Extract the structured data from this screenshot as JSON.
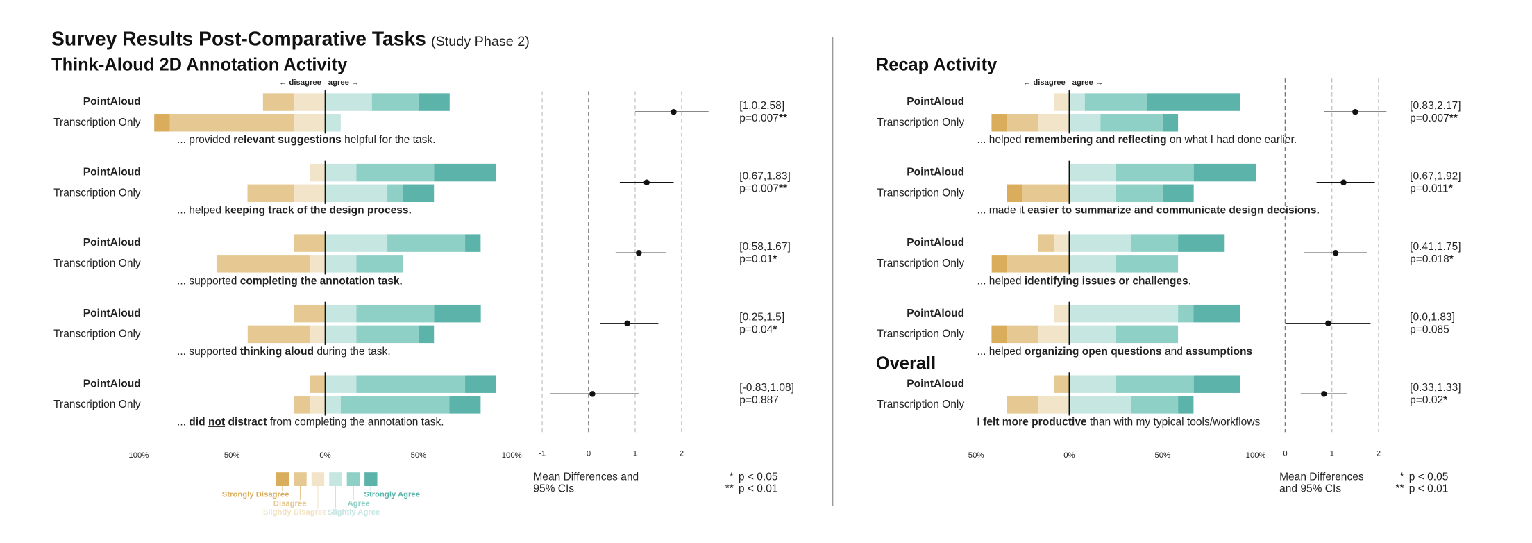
{
  "title": "Survey Results Post-Comparative Tasks",
  "subtitle": "(Study Phase 2)",
  "direction_labels": [
    "← disagree",
    "agree →"
  ],
  "legend": {
    "levels": [
      "Strongly Disagree",
      "Disagree",
      "Slightly Disagree",
      "Slightly Agree",
      "Agree",
      "Strongly Agree"
    ],
    "colors": [
      "#d9ad5b",
      "#e6c992",
      "#f2e4c8",
      "#c6e6e2",
      "#8fd0c6",
      "#5bb3a9"
    ]
  },
  "significance": [
    {
      "symbol": "*",
      "label": "p < 0.05"
    },
    {
      "symbol": "**",
      "label": "p < 0.01"
    }
  ],
  "chart_data": [
    {
      "type": "diverging_bar",
      "title": "Think-Aloud 2D Annotation Activity",
      "xlim": [
        -100,
        100
      ],
      "xticks": [
        {
          "value": -100,
          "label": "100%"
        },
        {
          "value": -50,
          "label": "50%"
        },
        {
          "value": 0,
          "label": "0%"
        },
        {
          "value": 50,
          "label": "50%"
        },
        {
          "value": 100,
          "label": "100%"
        }
      ],
      "ci_xlim": [
        -1,
        2
      ],
      "ci_xticks": [
        -1,
        0,
        1,
        2
      ],
      "ci_axis_label": [
        "Mean Differences and",
        "95% CIs"
      ],
      "groups": [
        {
          "question": [
            {
              "text": "... provided "
            },
            {
              "text": "relevant suggestions",
              "bold": true
            },
            {
              "text": " helpful for the task."
            }
          ],
          "series": [
            {
              "name": "PointAloud",
              "values": [
                0,
                16.7,
                16.7,
                25,
                25,
                16.7
              ]
            },
            {
              "name": "Transcription Only",
              "values": [
                8.3,
                66.7,
                16.7,
                8.3,
                0,
                0
              ]
            }
          ],
          "mean": 1.83,
          "ci": [
            1.0,
            2.58
          ],
          "ci_label": "[1.0,2.58]",
          "p_label": "p=0.007",
          "stars": "**"
        },
        {
          "question": [
            {
              "text": "... helped "
            },
            {
              "text": "keeping track of the design process.",
              "bold": true
            }
          ],
          "series": [
            {
              "name": "PointAloud",
              "values": [
                0,
                0,
                8.3,
                16.7,
                41.7,
                33.3
              ]
            },
            {
              "name": "Transcription Only",
              "values": [
                0,
                25,
                16.7,
                33.3,
                8.3,
                16.7
              ]
            }
          ],
          "mean": 1.25,
          "ci": [
            0.67,
            1.83
          ],
          "ci_label": "[0.67,1.83]",
          "p_label": "p=0.007",
          "stars": "**"
        },
        {
          "question": [
            {
              "text": "... supported "
            },
            {
              "text": "completing the annotation task.",
              "bold": true
            }
          ],
          "series": [
            {
              "name": "PointAloud",
              "values": [
                0,
                16.7,
                0,
                33.3,
                41.7,
                8.3
              ]
            },
            {
              "name": "Transcription Only",
              "values": [
                0,
                50,
                8.3,
                16.7,
                25,
                0
              ]
            }
          ],
          "mean": 1.08,
          "ci": [
            0.58,
            1.67
          ],
          "ci_label": "[0.58,1.67]",
          "p_label": "p=0.01",
          "stars": "*"
        },
        {
          "question": [
            {
              "text": "... supported "
            },
            {
              "text": "thinking aloud",
              "bold": true
            },
            {
              "text": " during the task."
            }
          ],
          "series": [
            {
              "name": "PointAloud",
              "values": [
                0,
                16.7,
                0,
                16.7,
                41.7,
                25
              ]
            },
            {
              "name": "Transcription Only",
              "values": [
                0,
                33.3,
                8.3,
                16.7,
                33.3,
                8.3
              ]
            }
          ],
          "mean": 0.83,
          "ci": [
            0.25,
            1.5
          ],
          "ci_label": "[0.25,1.5]",
          "p_label": "p=0.04",
          "stars": "*"
        },
        {
          "question": [
            {
              "text": "... "
            },
            {
              "text": "did ",
              "bold": true
            },
            {
              "text": "not",
              "bold": true,
              "underline": true
            },
            {
              "text": " distract",
              "bold": true
            },
            {
              "text": " from completing the annotation task."
            }
          ],
          "series": [
            {
              "name": "PointAloud",
              "values": [
                0,
                8.3,
                0,
                16.7,
                58.3,
                16.7
              ]
            },
            {
              "name": "Transcription Only",
              "values": [
                0,
                8.3,
                8.3,
                8.3,
                58.3,
                16.7
              ]
            }
          ],
          "mean": 0.08,
          "ci": [
            -0.83,
            1.08
          ],
          "ci_label": "[-0.83,1.08]",
          "p_label": "p=0.887"
        }
      ]
    },
    {
      "type": "diverging_bar",
      "title": "Recap Activity",
      "xlim": [
        -100,
        100
      ],
      "xticks": [
        {
          "value": -50,
          "label": "50%"
        },
        {
          "value": 0,
          "label": "0%"
        },
        {
          "value": 50,
          "label": "50%"
        },
        {
          "value": 100,
          "label": "100%"
        }
      ],
      "ci_xlim": [
        0,
        2
      ],
      "ci_xticks": [
        0,
        1,
        2
      ],
      "ci_axis_label": [
        "Mean Differences",
        "and 95% CIs"
      ],
      "groups": [
        {
          "question": [
            {
              "text": "... helped "
            },
            {
              "text": "remembering and reflecting",
              "bold": true
            },
            {
              "text": " on what I had done earlier."
            }
          ],
          "series": [
            {
              "name": "PointAloud",
              "values": [
                0,
                0,
                8.3,
                8.3,
                33.3,
                50
              ]
            },
            {
              "name": "Transcription Only",
              "values": [
                8.3,
                16.7,
                16.7,
                16.7,
                33.3,
                8.3
              ]
            }
          ],
          "mean": 1.5,
          "ci": [
            0.83,
            2.17
          ],
          "ci_label": "[0.83,2.17]",
          "p_label": "p=0.007",
          "stars": "**"
        },
        {
          "question": [
            {
              "text": "... made it "
            },
            {
              "text": "easier to summarize and communicate design decisions.",
              "bold": true
            }
          ],
          "series": [
            {
              "name": "PointAloud",
              "values": [
                0,
                0,
                0,
                25,
                41.7,
                33.3
              ]
            },
            {
              "name": "Transcription Only",
              "values": [
                8.3,
                25,
                0,
                25,
                25,
                16.7
              ]
            }
          ],
          "mean": 1.25,
          "ci": [
            0.67,
            1.92
          ],
          "ci_label": "[0.67,1.92]",
          "p_label": "p=0.011",
          "stars": "*"
        },
        {
          "question": [
            {
              "text": "... helped "
            },
            {
              "text": "identifying issues or challenges",
              "bold": true
            },
            {
              "text": "."
            }
          ],
          "series": [
            {
              "name": "PointAloud",
              "values": [
                0,
                8.3,
                8.3,
                33.3,
                25,
                25
              ]
            },
            {
              "name": "Transcription Only",
              "values": [
                8.3,
                33.3,
                0,
                25,
                33.3,
                0
              ]
            }
          ],
          "mean": 1.08,
          "ci": [
            0.41,
            1.75
          ],
          "ci_label": "[0.41,1.75]",
          "p_label": "p=0.018",
          "stars": "*"
        },
        {
          "question": [
            {
              "text": "... helped "
            },
            {
              "text": "organizing open questions",
              "bold": true
            },
            {
              "text": " and "
            },
            {
              "text": "assumptions",
              "bold": true
            }
          ],
          "series": [
            {
              "name": "PointAloud",
              "values": [
                0,
                0,
                8.3,
                58.3,
                8.3,
                25
              ]
            },
            {
              "name": "Transcription Only",
              "values": [
                8.3,
                16.7,
                16.7,
                25,
                33.3,
                0
              ]
            }
          ],
          "mean": 0.92,
          "ci": [
            0.0,
            1.83
          ],
          "ci_label": "[0.0,1.83]",
          "p_label": "p=0.085"
        },
        {
          "heading": "Overall",
          "question": [
            {
              "text": "I felt more productive",
              "bold": true
            },
            {
              "text": " than with my typical tools/workflows"
            }
          ],
          "series": [
            {
              "name": "PointAloud",
              "values": [
                0,
                8.3,
                0,
                25,
                41.7,
                25
              ]
            },
            {
              "name": "Transcription Only",
              "values": [
                0,
                16.7,
                16.7,
                33.3,
                25,
                8.3
              ]
            }
          ],
          "mean": 0.83,
          "ci": [
            0.33,
            1.33
          ],
          "ci_label": "[0.33,1.33]",
          "p_label": "p=0.02",
          "stars": "*"
        }
      ]
    }
  ]
}
